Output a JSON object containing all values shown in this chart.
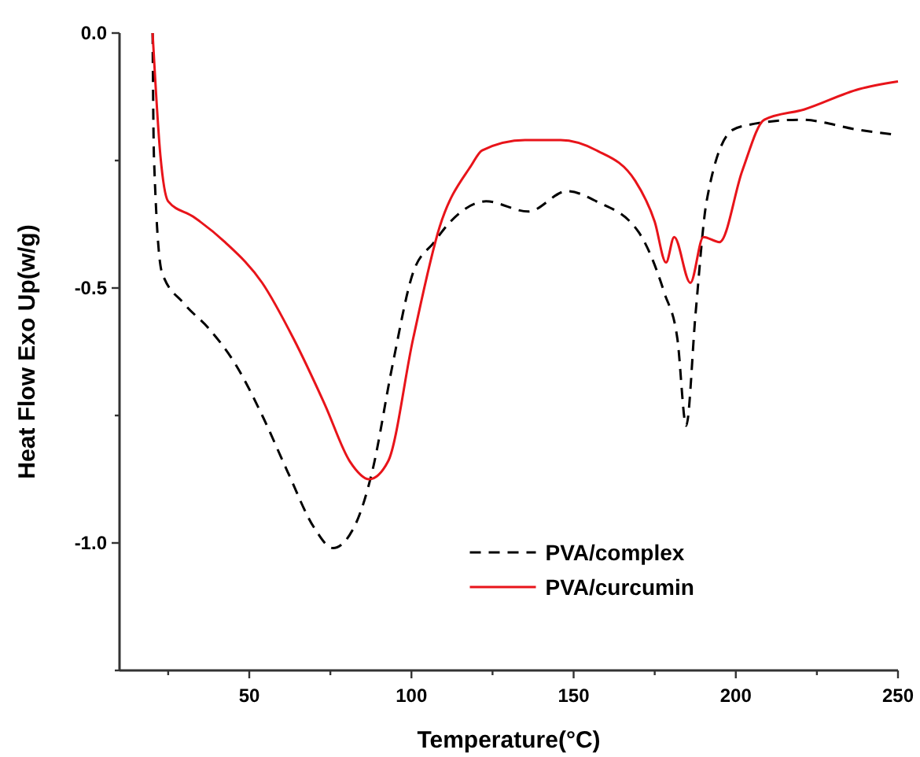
{
  "chart_data": {
    "type": "line",
    "xlabel": "Temperature(°C)",
    "ylabel": "Heat Flow Exo Up(w/g)",
    "xlim": [
      10,
      250
    ],
    "xticks": [
      {
        "value": 25,
        "label": null
      },
      50,
      {
        "value": 75,
        "label": null
      },
      100,
      {
        "value": 125,
        "label": null
      },
      150,
      {
        "value": 175,
        "label": null
      },
      200,
      {
        "value": 225,
        "label": null
      },
      250
    ],
    "ylim": [
      -1.25,
      0
    ],
    "yticks": [
      {
        "value": -1.25,
        "label": null
      },
      {
        "value": -1.0,
        "label": "-1.0"
      },
      {
        "value": -0.75,
        "label": null
      },
      -0.5,
      {
        "value": -0.25,
        "label": null
      },
      {
        "value": 0,
        "label": "0.0"
      }
    ],
    "grid": false,
    "legend": "bottom right",
    "marker": "none",
    "series": [
      {
        "name": "PVA/complex",
        "color": "#000000",
        "line_style": "dashed",
        "x": [
          20.2,
          20.6,
          23.1,
          29.8,
          37.6,
          45.8,
          54,
          61.8,
          70,
          75.8,
          83,
          87.9,
          94.2,
          100.5,
          107,
          112,
          123,
          136,
          148,
          157,
          170,
          178,
          182,
          184.7,
          187.6,
          191,
          199,
          204,
          220,
          238,
          250
        ],
        "values": [
          0,
          -0.24,
          -0.47,
          -0.53,
          -0.58,
          -0.65,
          -0.75,
          -0.86,
          -0.97,
          -1.01,
          -0.96,
          -0.86,
          -0.65,
          -0.47,
          -0.41,
          -0.37,
          -0.33,
          -0.35,
          -0.31,
          -0.33,
          -0.39,
          -0.51,
          -0.6,
          -0.77,
          -0.55,
          -0.33,
          -0.19,
          -0.18,
          -0.17,
          -0.19,
          -0.2
        ]
      },
      {
        "name": "PVA/curcumin",
        "color": "#e8141a",
        "line_style": "solid",
        "x": [
          20.2,
          22.6,
          25,
          32.7,
          42.5,
          54,
          63.7,
          73.4,
          81,
          87,
          92.8,
          100.5,
          108.7,
          118.4,
          121.8,
          135,
          146,
          157,
          169,
          175,
          178.5,
          181,
          186,
          190,
          195,
          202,
          208.8,
          221,
          238,
          250
        ],
        "values": [
          0,
          -0.24,
          -0.33,
          -0.36,
          -0.41,
          -0.49,
          -0.6,
          -0.73,
          -0.84,
          -0.875,
          -0.84,
          -0.6,
          -0.38,
          -0.26,
          -0.23,
          -0.21,
          -0.21,
          -0.23,
          -0.29,
          -0.37,
          -0.45,
          -0.4,
          -0.49,
          -0.4,
          -0.41,
          -0.27,
          -0.17,
          -0.15,
          -0.11,
          -0.095
        ]
      }
    ]
  }
}
